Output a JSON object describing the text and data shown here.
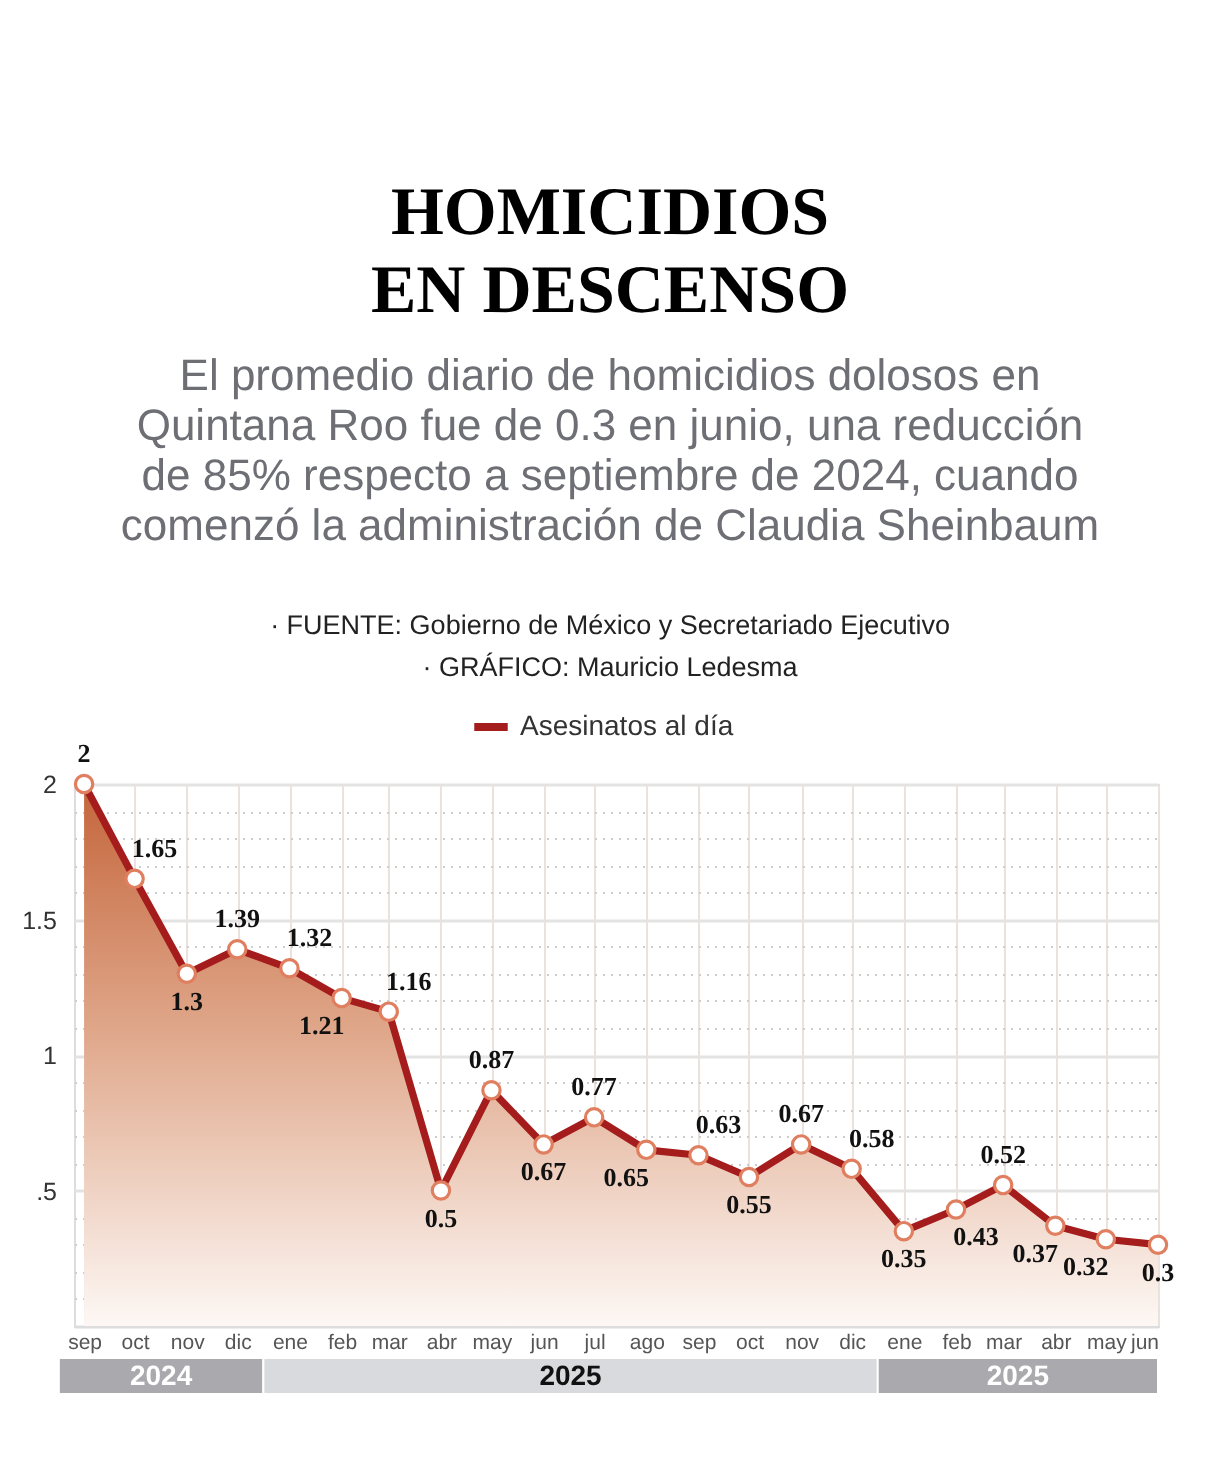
{
  "chart_data": {
    "type": "area",
    "title": "HOMICIDIOS EN DESCENSO",
    "subtitle": "El promedio diario de homicidios dolosos en Quintana Roo fue de 0.3 en junio, una reducción de 85% respecto a septiembre de 2024, cuando comenzó la administración de Claudia Sheinbaum",
    "annotations": [
      "· FUENTE: Gobierno de México y Secretariado Ejecutivo",
      "· GRÁFICO: Mauricio Ledesma",
      "2024",
      "2025",
      "2025"
    ],
    "x": [
      "2024-09",
      "2024-10",
      "2024-11",
      "2024-12",
      "2025-01",
      "2025-02",
      "2025-03",
      "2025-04",
      "2025-05",
      "2025-06",
      "2025-07",
      "2025-08",
      "2025-09",
      "2025-10",
      "2025-11",
      "2025-12",
      "2026-01",
      "2026-02",
      "2026-03",
      "2026-04",
      "2026-05",
      "2026-06"
    ],
    "series": [
      {
        "name": "Asesinatos al día",
        "color": "#a51c1c",
        "values": [
          2,
          1.65,
          1.3,
          1.39,
          1.32,
          1.21,
          1.16,
          0.5,
          0.87,
          0.67,
          0.77,
          0.65,
          0.63,
          0.55,
          0.67,
          0.58,
          0.35,
          0.43,
          0.52,
          0.37,
          0.32,
          0.3
        ]
      }
    ],
    "xlim": [
      "2024-08-26",
      "2026-06"
    ],
    "xticks": [
      {
        "value": "2024-09",
        "label": "sep"
      },
      {
        "value": "2024-10",
        "label": "oct"
      },
      {
        "value": "2024-11",
        "label": "nov"
      },
      {
        "value": "2024-12",
        "label": "dic"
      },
      {
        "value": "2025-01",
        "label": "ene"
      },
      {
        "value": "2025-02",
        "label": "feb"
      },
      {
        "value": "2025-03",
        "label": "mar"
      },
      {
        "value": "2025-04",
        "label": "abr"
      },
      {
        "value": "2025-05",
        "label": "may"
      },
      {
        "value": "2025-06",
        "label": "jun"
      },
      {
        "value": "2025-07",
        "label": "jul"
      },
      {
        "value": "2025-08",
        "label": "ago"
      },
      {
        "value": "2025-09",
        "label": "sep"
      },
      {
        "value": "2025-10",
        "label": "oct"
      },
      {
        "value": "2025-11",
        "label": "nov"
      },
      {
        "value": "2025-12",
        "label": "dic"
      },
      {
        "value": "2026-01",
        "label": "ene"
      },
      {
        "value": "2026-02",
        "label": "feb"
      },
      {
        "value": "2026-03",
        "label": "mar"
      },
      {
        "value": "2026-04",
        "label": "abr"
      },
      {
        "value": "2026-05",
        "label": "may"
      },
      {
        "value": "2026-06",
        "label": "jun"
      }
    ],
    "ylim": [
      0,
      2
    ],
    "yticks": [
      {
        "value": 0.1,
        "label": null
      },
      {
        "value": 0.2,
        "label": null
      },
      {
        "value": 0.3,
        "label": null
      },
      {
        "value": 0.4,
        "label": null
      },
      {
        "value": 0.5,
        "label": ".5"
      },
      {
        "value": 0.6,
        "label": null
      },
      {
        "value": 0.7,
        "label": null
      },
      {
        "value": 0.8,
        "label": null
      },
      {
        "value": 0.9,
        "label": null
      },
      1,
      {
        "value": 1.1,
        "label": null
      },
      {
        "value": 1.2,
        "label": null
      },
      {
        "value": 1.3,
        "label": null
      },
      {
        "value": 1.4,
        "label": null
      },
      1.5,
      {
        "value": 1.6,
        "label": null
      },
      {
        "value": 1.7,
        "label": null
      },
      {
        "value": 1.8,
        "label": null
      },
      {
        "value": 1.9,
        "label": null
      },
      2
    ],
    "grid": true,
    "legend": "top",
    "marker": "circle",
    "line_style": "solid",
    "data_labels": true
  }
}
